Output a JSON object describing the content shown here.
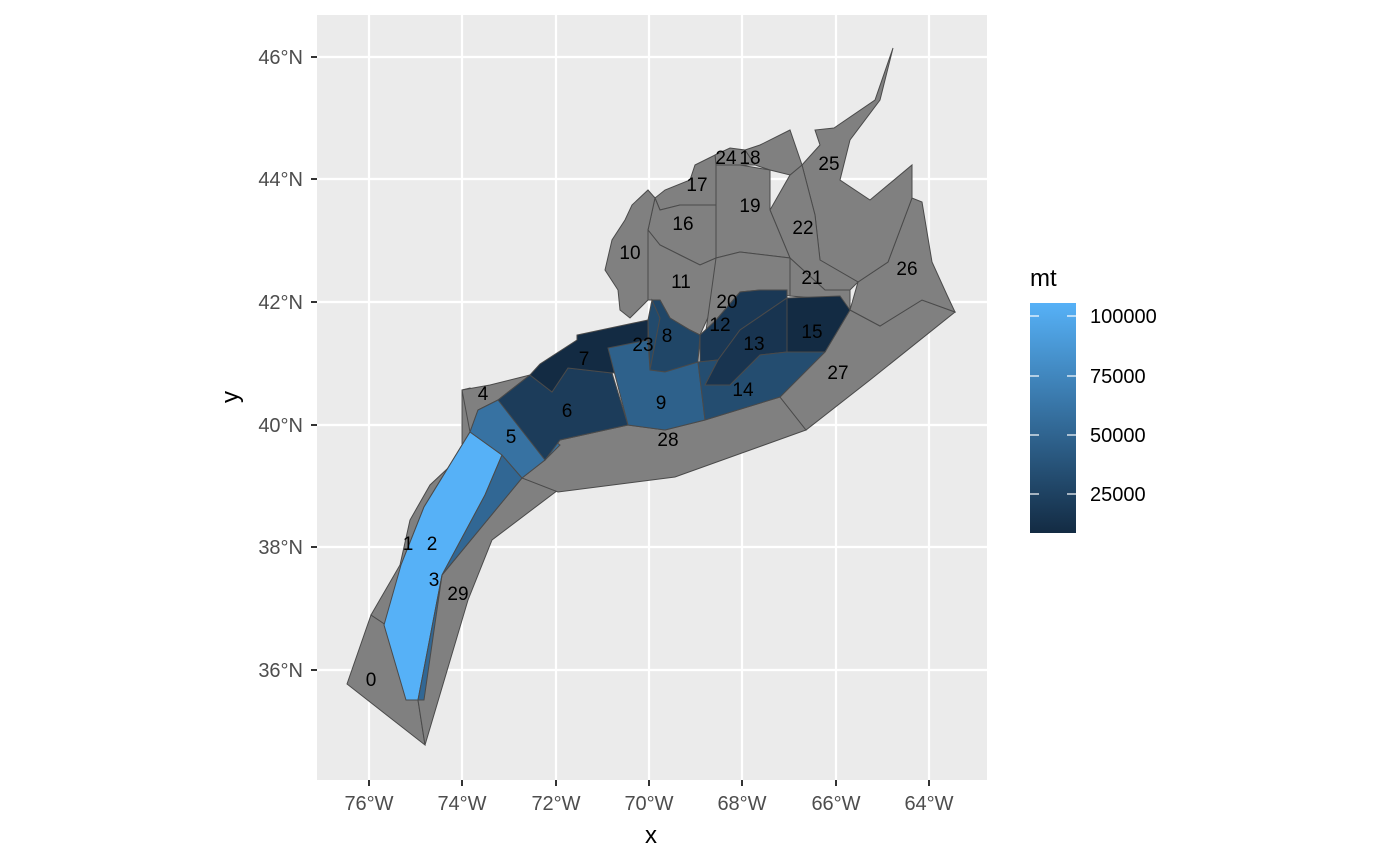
{
  "axes": {
    "x_title": "x",
    "y_title": "y",
    "x_ticks": [
      "76°W",
      "74°W",
      "72°W",
      "70°W",
      "68°W",
      "66°W",
      "64°W"
    ],
    "y_ticks": [
      "46°N",
      "44°N",
      "42°N",
      "40°N",
      "38°N",
      "36°N"
    ]
  },
  "legend": {
    "title": "mt",
    "labels": [
      "100000",
      "75000",
      "50000",
      "25000"
    ],
    "colors": {
      "low": "#132B43",
      "high": "#56B1F7"
    }
  },
  "colors": {
    "panel_background": "#EBEBEB",
    "grid": "#FFFFFF",
    "no_data_fill": "#808080",
    "outline": "#4A4A4A"
  },
  "areas": [
    {
      "id": "0",
      "mt": null
    },
    {
      "id": "1",
      "mt": null
    },
    {
      "id": "2",
      "mt": 105000
    },
    {
      "id": "3",
      "mt": 50000
    },
    {
      "id": "4",
      "mt": null
    },
    {
      "id": "5",
      "mt": 58000
    },
    {
      "id": "6",
      "mt": 18000
    },
    {
      "id": "7",
      "mt": 4000
    },
    {
      "id": "8",
      "mt": 25000
    },
    {
      "id": "9",
      "mt": 45000
    },
    {
      "id": "10",
      "mt": null
    },
    {
      "id": "11",
      "mt": null
    },
    {
      "id": "12",
      "mt": 15000
    },
    {
      "id": "13",
      "mt": 12000
    },
    {
      "id": "14",
      "mt": 30000
    },
    {
      "id": "15",
      "mt": 5000
    },
    {
      "id": "16",
      "mt": null
    },
    {
      "id": "17",
      "mt": null
    },
    {
      "id": "18",
      "mt": null
    },
    {
      "id": "19",
      "mt": null
    },
    {
      "id": "20",
      "mt": null
    },
    {
      "id": "21",
      "mt": null
    },
    {
      "id": "22",
      "mt": null
    },
    {
      "id": "23",
      "mt": 28000
    },
    {
      "id": "24",
      "mt": null
    },
    {
      "id": "25",
      "mt": null
    },
    {
      "id": "26",
      "mt": null
    },
    {
      "id": "27",
      "mt": null
    },
    {
      "id": "28",
      "mt": null
    },
    {
      "id": "29",
      "mt": null
    }
  ]
}
